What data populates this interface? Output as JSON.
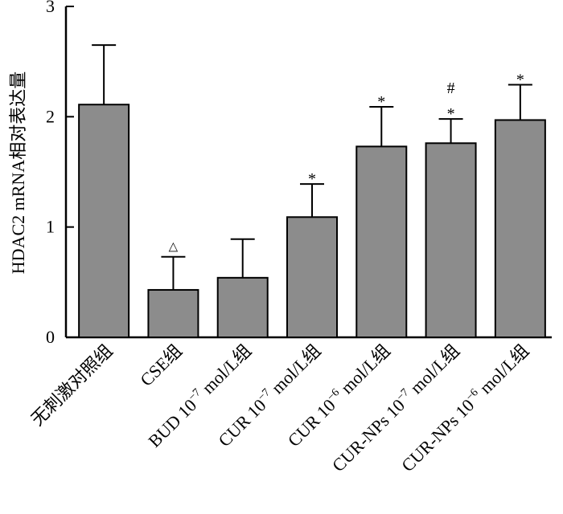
{
  "chart_data": {
    "type": "bar",
    "title": "",
    "xlabel": "",
    "ylabel": "HDAC2 mRNA相对表达量",
    "ylim": [
      0,
      3
    ],
    "yticks": [
      0,
      1,
      2,
      3
    ],
    "grid": false,
    "categories": [
      {
        "text": "无刺激对照组"
      },
      {
        "text": "CSE组"
      },
      {
        "pre": "BUD 10",
        "sup": "−7",
        "post": " mol/L组"
      },
      {
        "pre": "CUR 10",
        "sup": "−7",
        "post": " mol/L组"
      },
      {
        "pre": "CUR 10",
        "sup": "−6",
        "post": " mol/L组"
      },
      {
        "pre": "CUR-NPs 10",
        "sup": "−7",
        "post": " mol/L组"
      },
      {
        "pre": "CUR-NPs 10",
        "sup": "−6",
        "post": " mol/L组"
      }
    ],
    "values": [
      2.11,
      0.43,
      0.54,
      1.09,
      1.73,
      1.76,
      1.97
    ],
    "errors": [
      0.54,
      0.3,
      0.35,
      0.3,
      0.36,
      0.22,
      0.32
    ],
    "annotations": [
      [],
      [
        "△"
      ],
      [],
      [
        "*"
      ],
      [
        "*"
      ],
      [
        "#",
        "*"
      ],
      [
        "*"
      ]
    ],
    "colors": {
      "bar": "#8c8c8c",
      "axis": "#000000"
    }
  }
}
